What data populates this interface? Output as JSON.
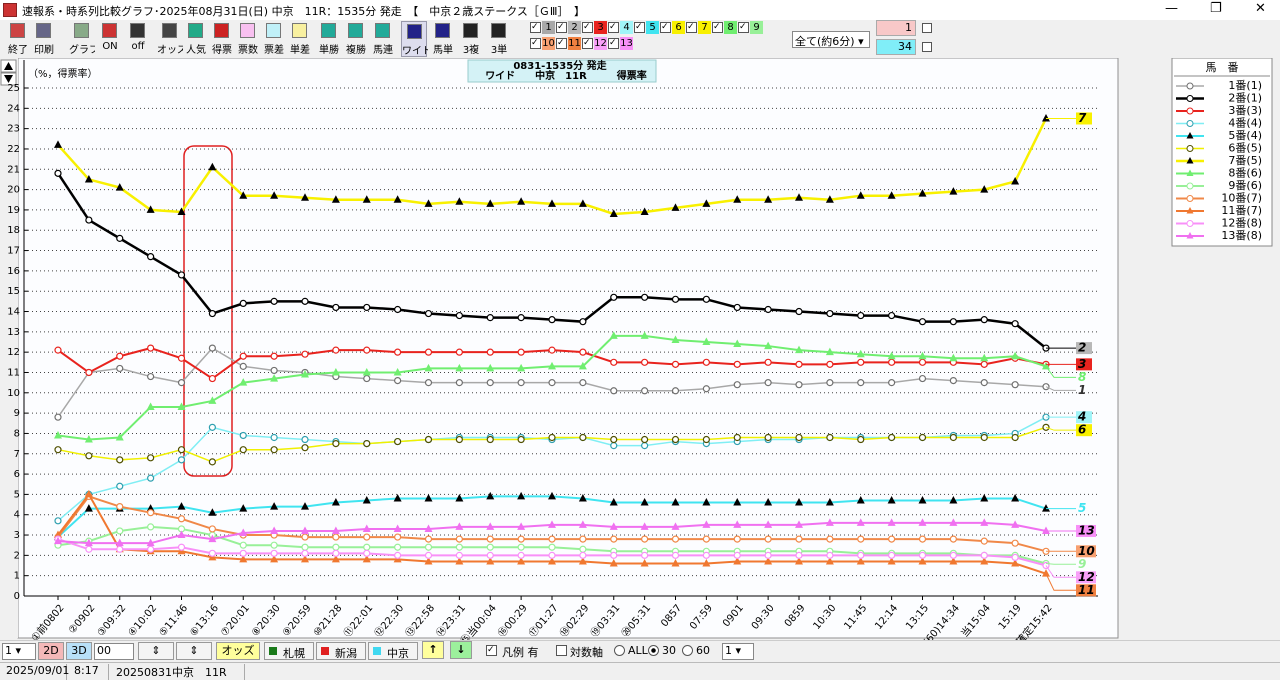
{
  "window": {
    "title": "速報系・時系列比較グラフ･2025年08月31日(日) 中京　11R：1535分 発走　【　中京２歳ステークス［ＧⅢ］　】"
  },
  "toolbar": {
    "buttons": [
      "終了",
      "印刷",
      "グラフ",
      "ON",
      "off",
      "オッズ",
      "人気",
      "得票",
      "票数",
      "票差",
      "単差",
      "単勝",
      "複勝",
      "馬連",
      "ワイド",
      "馬単",
      "3複",
      "3単"
    ],
    "period": "全て(約6分)",
    "box1": "1",
    "box2": "34"
  },
  "chart_data": {
    "type": "line",
    "title_line1": "0831-1535分 発走",
    "title_line2": "ワイド　　中京　11R　　　得票率",
    "y_label": "（%，得票率）",
    "legend_title": "馬　番",
    "categories": [
      "①前0802",
      "②0902",
      "③09:32",
      "④10:02",
      "⑤11:46",
      "⑥13:16",
      "⑦20:01",
      "⑧20:30",
      "⑨20:59",
      "⑩21:28",
      "⑪22:01",
      "⑫22:30",
      "⑬22:58",
      "⑭23:31",
      "⑮当00:04",
      "⑯00:29",
      "⑰01:27",
      "⑱02:29",
      "⑲03:31",
      "⑳05:31",
      "0857",
      "07:59",
      "0901",
      "09:30",
      "0859",
      "10:30",
      "11:45",
      "12:14",
      "13:15",
      "(60)14:34",
      "当15:04",
      "15:19",
      "確定15:42"
    ],
    "ylim": [
      0,
      25
    ],
    "yticks": [
      0,
      1,
      2,
      3,
      4,
      5,
      6,
      7,
      8,
      9,
      10,
      11,
      12,
      13,
      14,
      15,
      16,
      17,
      18,
      19,
      20,
      21,
      22,
      23,
      24,
      25
    ],
    "grid": true,
    "series": [
      {
        "name": "1番(1)",
        "tag": "1",
        "color": "#a8a8a8",
        "marker": "circle",
        "marker_color": "#707070",
        "width": 1.5,
        "values": [
          8.8,
          11.0,
          11.2,
          10.8,
          10.5,
          12.2,
          11.3,
          11.1,
          11.0,
          10.8,
          10.7,
          10.6,
          10.5,
          10.5,
          10.5,
          10.5,
          10.5,
          10.5,
          10.1,
          10.1,
          10.1,
          10.2,
          10.4,
          10.5,
          10.4,
          10.5,
          10.5,
          10.5,
          10.7,
          10.6,
          10.5,
          10.4,
          10.3
        ]
      },
      {
        "name": "2番(1)",
        "tag": "2",
        "tag_fill": "#b8b8b8",
        "color": "#000000",
        "marker": "circle",
        "marker_color": "#000000",
        "width": 2.5,
        "values": [
          20.8,
          18.5,
          17.6,
          16.7,
          15.8,
          13.9,
          14.4,
          14.5,
          14.5,
          14.2,
          14.2,
          14.1,
          13.9,
          13.8,
          13.7,
          13.7,
          13.6,
          13.5,
          14.7,
          14.7,
          14.6,
          14.6,
          14.2,
          14.1,
          14.0,
          13.9,
          13.8,
          13.8,
          13.5,
          13.5,
          13.6,
          13.4,
          12.2
        ]
      },
      {
        "name": "3番(3)",
        "tag": "3",
        "tag_fill": "#e8231e",
        "color": "#e8231e",
        "marker": "circle",
        "marker_color": "#e8231e",
        "width": 2,
        "values": [
          12.1,
          11.0,
          11.8,
          12.2,
          11.7,
          10.7,
          11.8,
          11.8,
          11.9,
          12.1,
          12.1,
          12.0,
          12.0,
          12.0,
          12.0,
          12.0,
          12.1,
          12.0,
          11.5,
          11.5,
          11.4,
          11.5,
          11.4,
          11.5,
          11.4,
          11.4,
          11.5,
          11.5,
          11.5,
          11.5,
          11.4,
          11.7,
          11.4
        ]
      },
      {
        "name": "4番(4)",
        "tag": "4",
        "tag_fill": "#a0f4f8",
        "color": "#80eef4",
        "marker": "circle",
        "marker_color": "#30a0b0",
        "width": 1.5,
        "values": [
          3.7,
          5.0,
          5.4,
          5.8,
          6.7,
          8.3,
          7.9,
          7.8,
          7.7,
          7.6,
          7.5,
          7.6,
          7.7,
          7.8,
          7.8,
          7.8,
          7.7,
          7.8,
          7.4,
          7.4,
          7.6,
          7.5,
          7.6,
          7.7,
          7.7,
          7.8,
          7.8,
          7.8,
          7.8,
          7.9,
          7.9,
          8.0,
          8.8
        ]
      },
      {
        "name": "5番(4)",
        "tag": "5",
        "color": "#40e4f0",
        "marker": "triangle",
        "marker_color": "#000000",
        "width": 2,
        "values": [
          2.9,
          4.3,
          4.3,
          4.3,
          4.4,
          4.1,
          4.3,
          4.4,
          4.4,
          4.6,
          4.7,
          4.8,
          4.8,
          4.8,
          4.9,
          4.9,
          4.9,
          4.8,
          4.6,
          4.6,
          4.6,
          4.6,
          4.6,
          4.6,
          4.6,
          4.6,
          4.7,
          4.7,
          4.7,
          4.7,
          4.8,
          4.8,
          4.3
        ]
      },
      {
        "name": "6番(5)",
        "tag": "6",
        "tag_fill": "#f8f000",
        "color": "#f0f000",
        "marker": "circle",
        "marker_color": "#505000",
        "width": 1.5,
        "values": [
          7.2,
          6.9,
          6.7,
          6.8,
          7.2,
          6.6,
          7.2,
          7.2,
          7.3,
          7.5,
          7.5,
          7.6,
          7.7,
          7.7,
          7.7,
          7.7,
          7.8,
          7.8,
          7.7,
          7.7,
          7.7,
          7.7,
          7.8,
          7.8,
          7.8,
          7.8,
          7.7,
          7.8,
          7.8,
          7.8,
          7.8,
          7.8,
          8.3
        ]
      },
      {
        "name": "7番(5)",
        "tag": "7",
        "tag_fill": "#f8f000",
        "color": "#f8f000",
        "marker": "triangle",
        "marker_color": "#000000",
        "width": 2.5,
        "values": [
          22.2,
          20.5,
          20.1,
          19.0,
          18.9,
          21.1,
          19.7,
          19.7,
          19.6,
          19.5,
          19.5,
          19.5,
          19.3,
          19.4,
          19.3,
          19.4,
          19.3,
          19.3,
          18.8,
          18.9,
          19.1,
          19.3,
          19.5,
          19.5,
          19.6,
          19.5,
          19.7,
          19.7,
          19.8,
          19.9,
          20.0,
          20.4,
          23.5
        ]
      },
      {
        "name": "8番(6)",
        "tag": "8",
        "color": "#70ee70",
        "marker": "triangle",
        "marker_color": "#70ee70",
        "width": 2,
        "values": [
          7.9,
          7.7,
          7.8,
          9.3,
          9.3,
          9.6,
          10.5,
          10.7,
          10.9,
          11.0,
          11.0,
          11.0,
          11.2,
          11.2,
          11.2,
          11.2,
          11.3,
          11.3,
          12.8,
          12.8,
          12.6,
          12.5,
          12.4,
          12.3,
          12.1,
          12.0,
          11.9,
          11.8,
          11.8,
          11.7,
          11.7,
          11.8,
          11.3
        ]
      },
      {
        "name": "9番(6)",
        "tag": "9",
        "color": "#98f098",
        "marker": "circle",
        "marker_color": "#98f098",
        "width": 2,
        "values": [
          2.5,
          2.7,
          3.2,
          3.4,
          3.3,
          3.0,
          2.5,
          2.5,
          2.4,
          2.4,
          2.4,
          2.4,
          2.4,
          2.4,
          2.4,
          2.4,
          2.4,
          2.3,
          2.2,
          2.2,
          2.2,
          2.2,
          2.2,
          2.2,
          2.2,
          2.2,
          2.1,
          2.1,
          2.1,
          2.1,
          2.0,
          2.0,
          1.6
        ]
      },
      {
        "name": "10番(7)",
        "tag": "10",
        "tag_fill": "#f8a070",
        "color": "#f08848",
        "marker": "circle",
        "marker_color": "#f08848",
        "width": 2,
        "values": [
          2.9,
          4.9,
          4.4,
          4.1,
          3.8,
          3.3,
          3.0,
          3.0,
          2.9,
          2.9,
          2.9,
          2.9,
          2.8,
          2.8,
          2.8,
          2.8,
          2.8,
          2.8,
          2.8,
          2.8,
          2.8,
          2.8,
          2.8,
          2.8,
          2.8,
          2.8,
          2.8,
          2.8,
          2.8,
          2.8,
          2.7,
          2.6,
          2.2
        ]
      },
      {
        "name": "11番(7)",
        "tag": "11",
        "tag_fill": "#f08040",
        "color": "#f07830",
        "marker": "triangle",
        "marker_color": "#f07830",
        "width": 2,
        "values": [
          3.0,
          5.0,
          2.3,
          2.2,
          2.2,
          1.9,
          1.8,
          1.8,
          1.8,
          1.8,
          1.8,
          1.8,
          1.7,
          1.7,
          1.7,
          1.7,
          1.7,
          1.7,
          1.6,
          1.6,
          1.6,
          1.6,
          1.7,
          1.7,
          1.7,
          1.7,
          1.7,
          1.7,
          1.7,
          1.7,
          1.7,
          1.6,
          1.1
        ]
      },
      {
        "name": "12番(8)",
        "tag": "12",
        "tag_fill": "#f8a0f8",
        "color": "#f890f8",
        "marker": "circle",
        "marker_color": "#f890f8",
        "width": 2,
        "values": [
          2.8,
          2.3,
          2.3,
          2.3,
          2.4,
          2.1,
          2.1,
          2.1,
          2.1,
          2.1,
          2.1,
          2.0,
          2.0,
          2.0,
          2.0,
          2.0,
          2.0,
          2.0,
          2.0,
          2.0,
          2.0,
          2.0,
          2.0,
          2.0,
          2.0,
          2.0,
          2.0,
          2.0,
          2.0,
          2.0,
          2.0,
          1.9,
          1.5
        ]
      },
      {
        "name": "13番(8)",
        "tag": "13",
        "tag_fill": "#f890f8",
        "color": "#f070f0",
        "marker": "triangle",
        "marker_color": "#f070f0",
        "width": 2,
        "values": [
          2.7,
          2.6,
          2.6,
          2.6,
          3.0,
          2.8,
          3.1,
          3.2,
          3.2,
          3.2,
          3.3,
          3.3,
          3.3,
          3.4,
          3.4,
          3.4,
          3.5,
          3.5,
          3.4,
          3.4,
          3.4,
          3.5,
          3.5,
          3.5,
          3.5,
          3.6,
          3.6,
          3.6,
          3.6,
          3.6,
          3.6,
          3.5,
          3.2
        ]
      }
    ]
  },
  "bottom_bar": {
    "select1": "1",
    "btn_2d": "2D",
    "btn_3d": "3D",
    "field": "00",
    "odds": "オッズ",
    "venues": [
      "札幌",
      "新潟",
      "中京"
    ],
    "up": "↑",
    "down": "↓",
    "legend_check": "凡例 有",
    "log_axis": "対数軸",
    "radio": [
      "ALL",
      "30",
      "60"
    ],
    "select2": "1"
  },
  "status_bar": [
    "2025/09/01",
    "8:17",
    "20250831中京　11R"
  ]
}
